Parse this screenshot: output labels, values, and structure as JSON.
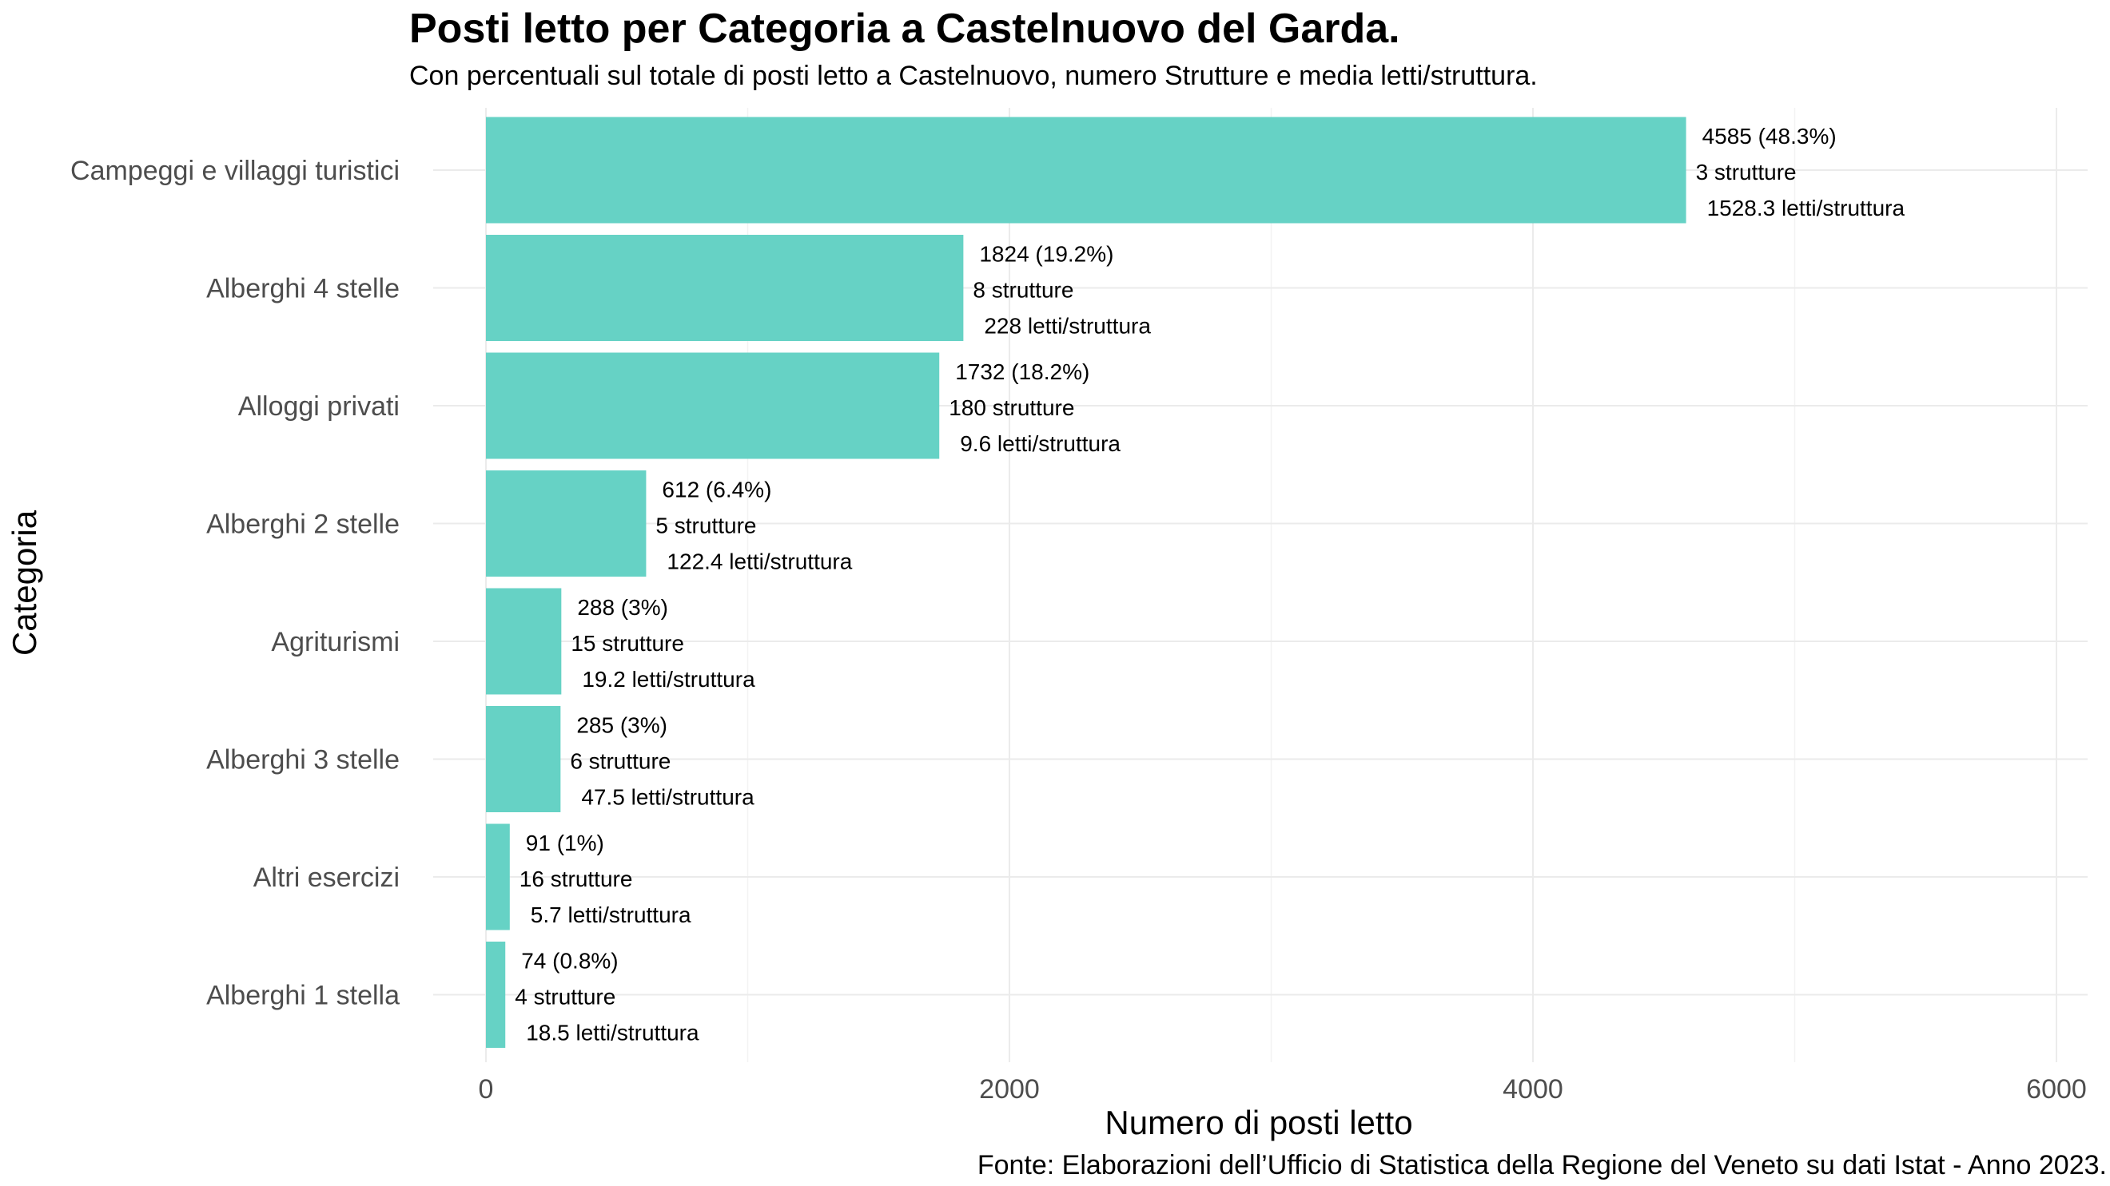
{
  "chart_data": {
    "type": "bar",
    "orientation": "horizontal",
    "title": "Posti letto per Categoria a Castelnuovo del Garda.",
    "subtitle": "Con percentuali sul totale di posti letto a Castelnuovo, numero Strutture e media letti/struttura.",
    "xlabel": "Numero di posti letto",
    "ylabel": "Categoria",
    "caption": "Fonte: Elaborazioni dell’Ufficio di Statistica della Regione del Veneto su dati Istat - Anno 2023.",
    "xlim": [
      0,
      6000
    ],
    "xticks": [
      0,
      2000,
      4000,
      6000
    ],
    "xtick_labels": [
      "0",
      "2000",
      "4000",
      "6000"
    ],
    "bar_color": "#66d2c5",
    "grid": true,
    "categories": [
      "Campeggi e villaggi turistici",
      "Alberghi 4 stelle",
      "Alloggi privati",
      "Alberghi 2 stelle",
      "Agriturismi",
      "Alberghi 3 stelle",
      "Altri esercizi",
      "Alberghi 1 stella"
    ],
    "values": [
      4585,
      1824,
      1732,
      612,
      288,
      285,
      91,
      74
    ],
    "annotations": [
      [
        "4585 (48.3%)",
        "3 strutture",
        "1528.3 letti/struttura"
      ],
      [
        "1824 (19.2%)",
        "8 strutture",
        "228 letti/struttura"
      ],
      [
        "1732 (18.2%)",
        "180 strutture",
        "9.6 letti/struttura"
      ],
      [
        "612 (6.4%)",
        "5 strutture",
        "122.4 letti/struttura"
      ],
      [
        "288 (3%)",
        "15 strutture",
        "19.2 letti/struttura"
      ],
      [
        "285 (3%)",
        "6 strutture",
        "47.5 letti/struttura"
      ],
      [
        "91 (1%)",
        "16 strutture",
        "5.7 letti/struttura"
      ],
      [
        "74 (0.8%)",
        "4 strutture",
        "18.5 letti/struttura"
      ]
    ]
  }
}
